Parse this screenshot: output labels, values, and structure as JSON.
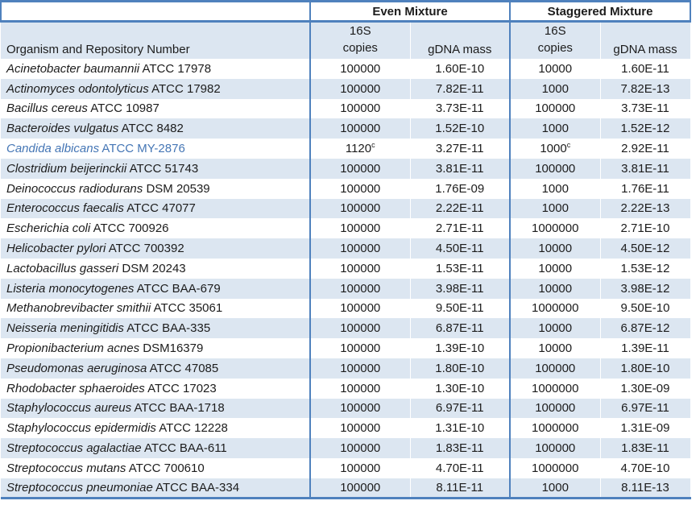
{
  "table": {
    "group_headers": {
      "even": "Even Mixture",
      "staggered": "Staggered Mixture"
    },
    "sub_headers": {
      "organism": "Organism and Repository Number",
      "copies_line1": "16S",
      "copies_line2": "copies",
      "gdna": "gDNA mass"
    },
    "footnote_marker": "c",
    "rows": [
      {
        "organism": "Acinetobacter baumannii",
        "strain": "ATCC 17978",
        "even_copies": "100000",
        "even_gdna": "1.60E-10",
        "stag_copies": "10000",
        "stag_gdna": "1.60E-11",
        "highlight": false
      },
      {
        "organism": "Actinomyces odontolyticus",
        "strain": "ATCC 17982",
        "even_copies": "100000",
        "even_gdna": "7.82E-11",
        "stag_copies": "1000",
        "stag_gdna": "7.82E-13",
        "highlight": false
      },
      {
        "organism": "Bacillus cereus",
        "strain": "ATCC 10987",
        "even_copies": "100000",
        "even_gdna": "3.73E-11",
        "stag_copies": "100000",
        "stag_gdna": "3.73E-11",
        "highlight": false
      },
      {
        "organism": "Bacteroides vulgatus",
        "strain": "ATCC 8482",
        "even_copies": "100000",
        "even_gdna": "1.52E-10",
        "stag_copies": "1000",
        "stag_gdna": "1.52E-12",
        "highlight": false
      },
      {
        "organism": "Candida albicans",
        "strain": "ATCC MY-2876",
        "even_copies": "1120",
        "even_copies_sup": "c",
        "even_gdna": "3.27E-11",
        "stag_copies": "1000",
        "stag_copies_sup": "c",
        "stag_gdna": "2.92E-11",
        "highlight": true
      },
      {
        "organism": "Clostridium beijerinckii",
        "strain": "ATCC 51743",
        "even_copies": "100000",
        "even_gdna": "3.81E-11",
        "stag_copies": "100000",
        "stag_gdna": "3.81E-11",
        "highlight": false
      },
      {
        "organism": "Deinococcus radiodurans",
        "strain": "DSM 20539",
        "even_copies": "100000",
        "even_gdna": "1.76E-09",
        "stag_copies": "1000",
        "stag_gdna": "1.76E-11",
        "highlight": false
      },
      {
        "organism": "Enterococcus faecalis",
        "strain": "ATCC 47077",
        "even_copies": "100000",
        "even_gdna": "2.22E-11",
        "stag_copies": "1000",
        "stag_gdna": "2.22E-13",
        "highlight": false
      },
      {
        "organism": "Escherichia coli",
        "strain": "ATCC 700926",
        "even_copies": "100000",
        "even_gdna": "2.71E-11",
        "stag_copies": "1000000",
        "stag_gdna": "2.71E-10",
        "highlight": false
      },
      {
        "organism": "Helicobacter pylori",
        "strain": "ATCC 700392",
        "even_copies": "100000",
        "even_gdna": "4.50E-11",
        "stag_copies": "10000",
        "stag_gdna": "4.50E-12",
        "highlight": false
      },
      {
        "organism": "Lactobacillus gasseri",
        "strain": "DSM 20243",
        "even_copies": "100000",
        "even_gdna": "1.53E-11",
        "stag_copies": "10000",
        "stag_gdna": "1.53E-12",
        "highlight": false
      },
      {
        "organism": "Listeria monocytogenes",
        "strain": "ATCC BAA-679",
        "even_copies": "100000",
        "even_gdna": "3.98E-11",
        "stag_copies": "10000",
        "stag_gdna": "3.98E-12",
        "highlight": false
      },
      {
        "organism": "Methanobrevibacter smithii",
        "strain": "ATCC 35061",
        "even_copies": "100000",
        "even_gdna": "9.50E-11",
        "stag_copies": "1000000",
        "stag_gdna": "9.50E-10",
        "highlight": false
      },
      {
        "organism": "Neisseria meningitidis",
        "strain": "ATCC BAA-335",
        "even_copies": "100000",
        "even_gdna": "6.87E-11",
        "stag_copies": "10000",
        "stag_gdna": "6.87E-12",
        "highlight": false
      },
      {
        "organism": "Propionibacterium acnes",
        "strain": "DSM16379",
        "even_copies": "100000",
        "even_gdna": "1.39E-10",
        "stag_copies": "10000",
        "stag_gdna": "1.39E-11",
        "highlight": false
      },
      {
        "organism": "Pseudomonas aeruginosa",
        "strain": "ATCC 47085",
        "even_copies": "100000",
        "even_gdna": "1.80E-10",
        "stag_copies": "100000",
        "stag_gdna": "1.80E-10",
        "highlight": false
      },
      {
        "organism": "Rhodobacter sphaeroides",
        "strain": "ATCC 17023",
        "even_copies": "100000",
        "even_gdna": "1.30E-10",
        "stag_copies": "1000000",
        "stag_gdna": "1.30E-09",
        "highlight": false
      },
      {
        "organism": "Staphylococcus aureus",
        "strain": "ATCC BAA-1718",
        "even_copies": "100000",
        "even_gdna": "6.97E-11",
        "stag_copies": "100000",
        "stag_gdna": "6.97E-11",
        "highlight": false
      },
      {
        "organism": "Staphylococcus epidermidis",
        "strain": "ATCC 12228",
        "even_copies": "100000",
        "even_gdna": "1.31E-10",
        "stag_copies": "1000000",
        "stag_gdna": "1.31E-09",
        "highlight": false
      },
      {
        "organism": "Streptococcus agalactiae",
        "strain": "ATCC BAA-611",
        "even_copies": "100000",
        "even_gdna": "1.83E-11",
        "stag_copies": "100000",
        "stag_gdna": "1.83E-11",
        "highlight": false
      },
      {
        "organism": "Streptococcus mutans",
        "strain": "ATCC 700610",
        "even_copies": "100000",
        "even_gdna": "4.70E-11",
        "stag_copies": "1000000",
        "stag_gdna": "4.70E-10",
        "highlight": false
      },
      {
        "organism": "Streptococcus pneumoniae",
        "strain": "ATCC BAA-334",
        "even_copies": "100000",
        "even_gdna": "8.11E-11",
        "stag_copies": "1000",
        "stag_gdna": "8.11E-13",
        "highlight": false
      }
    ]
  },
  "colors": {
    "border_blue": "#4f81bd",
    "stripe_blue": "#dce6f1",
    "highlight_text_blue": "#4576b5",
    "text": "#1c1c1c",
    "background": "#ffffff"
  }
}
